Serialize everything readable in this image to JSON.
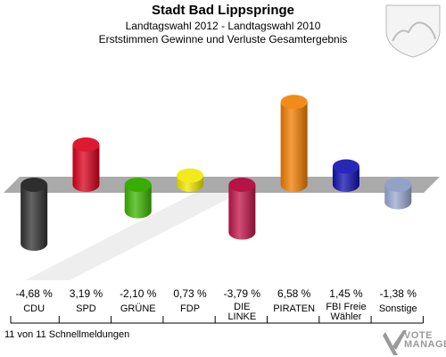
{
  "header": {
    "title": "Stadt Bad Lippspringe",
    "subtitle": "Landtagswahl 2012 - Landtagswahl 2010",
    "description": "Erststimmen Gewinne und Verluste Gesamtergebnis"
  },
  "footer": {
    "reporting": "11 von 11 Schnellmeldungen"
  },
  "logo": {
    "line1": "VOTE",
    "line2": "MANAGER"
  },
  "chart_data": {
    "type": "bar",
    "title": "Stadt Bad Lippspringe",
    "categories": [
      "CDU",
      "SPD",
      "GRÜNE",
      "FDP",
      "DIE LINKE",
      "PIRATEN",
      "FBI Freie Wähler",
      "Sonstige"
    ],
    "category_lines": [
      [
        "CDU"
      ],
      [
        "SPD"
      ],
      [
        "GRÜNE"
      ],
      [
        "FDP"
      ],
      [
        "DIE",
        "LINKE"
      ],
      [
        "PIRATEN"
      ],
      [
        "FBI Freie",
        "Wähler"
      ],
      [
        "Sonstige"
      ]
    ],
    "values": [
      -4.68,
      3.19,
      -2.1,
      0.73,
      -3.79,
      6.58,
      1.45,
      -1.38
    ],
    "labels": [
      "-4,68 %",
      "3,19 %",
      "-2,10 %",
      "0,73 %",
      "-3,79 %",
      "6,58 %",
      "1,45 %",
      "-1,38 %"
    ],
    "colors": [
      "#303030",
      "#d9001b",
      "#3cb500",
      "#f0e800",
      "#c0144a",
      "#f27e00",
      "#1010b0",
      "#9aa9d0"
    ],
    "unit": "%",
    "grid": false,
    "legend": "none"
  }
}
